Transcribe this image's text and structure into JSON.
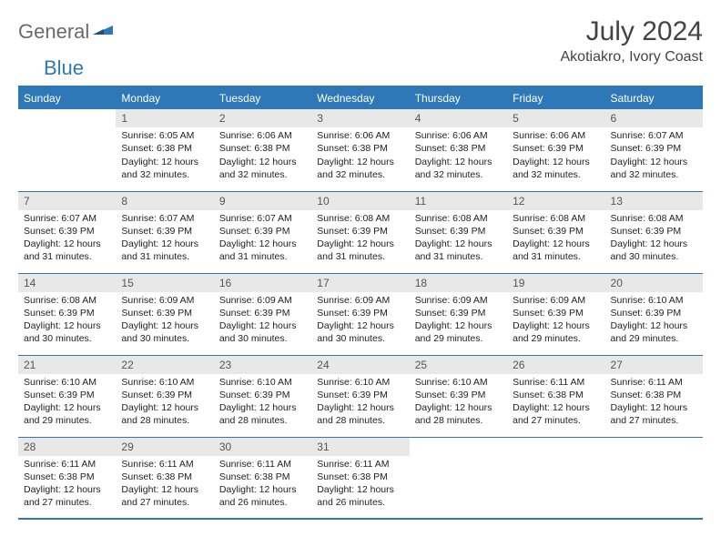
{
  "logo": {
    "general": "General",
    "blue": "Blue"
  },
  "title": "July 2024",
  "location": "Akotiakro, Ivory Coast",
  "weekdays": [
    "Sunday",
    "Monday",
    "Tuesday",
    "Wednesday",
    "Thursday",
    "Friday",
    "Saturday"
  ],
  "colors": {
    "brand": "#2f78b7",
    "header_bg": "#2f78b7",
    "header_text": "#ffffff",
    "daynum_bg": "#e8e8e8",
    "text": "#222222"
  },
  "weeks": [
    [
      {
        "day": "",
        "sunrise": "",
        "sunset": "",
        "daylight": ""
      },
      {
        "day": "1",
        "sunrise": "Sunrise: 6:05 AM",
        "sunset": "Sunset: 6:38 PM",
        "daylight": "Daylight: 12 hours and 32 minutes."
      },
      {
        "day": "2",
        "sunrise": "Sunrise: 6:06 AM",
        "sunset": "Sunset: 6:38 PM",
        "daylight": "Daylight: 12 hours and 32 minutes."
      },
      {
        "day": "3",
        "sunrise": "Sunrise: 6:06 AM",
        "sunset": "Sunset: 6:38 PM",
        "daylight": "Daylight: 12 hours and 32 minutes."
      },
      {
        "day": "4",
        "sunrise": "Sunrise: 6:06 AM",
        "sunset": "Sunset: 6:38 PM",
        "daylight": "Daylight: 12 hours and 32 minutes."
      },
      {
        "day": "5",
        "sunrise": "Sunrise: 6:06 AM",
        "sunset": "Sunset: 6:39 PM",
        "daylight": "Daylight: 12 hours and 32 minutes."
      },
      {
        "day": "6",
        "sunrise": "Sunrise: 6:07 AM",
        "sunset": "Sunset: 6:39 PM",
        "daylight": "Daylight: 12 hours and 32 minutes."
      }
    ],
    [
      {
        "day": "7",
        "sunrise": "Sunrise: 6:07 AM",
        "sunset": "Sunset: 6:39 PM",
        "daylight": "Daylight: 12 hours and 31 minutes."
      },
      {
        "day": "8",
        "sunrise": "Sunrise: 6:07 AM",
        "sunset": "Sunset: 6:39 PM",
        "daylight": "Daylight: 12 hours and 31 minutes."
      },
      {
        "day": "9",
        "sunrise": "Sunrise: 6:07 AM",
        "sunset": "Sunset: 6:39 PM",
        "daylight": "Daylight: 12 hours and 31 minutes."
      },
      {
        "day": "10",
        "sunrise": "Sunrise: 6:08 AM",
        "sunset": "Sunset: 6:39 PM",
        "daylight": "Daylight: 12 hours and 31 minutes."
      },
      {
        "day": "11",
        "sunrise": "Sunrise: 6:08 AM",
        "sunset": "Sunset: 6:39 PM",
        "daylight": "Daylight: 12 hours and 31 minutes."
      },
      {
        "day": "12",
        "sunrise": "Sunrise: 6:08 AM",
        "sunset": "Sunset: 6:39 PM",
        "daylight": "Daylight: 12 hours and 31 minutes."
      },
      {
        "day": "13",
        "sunrise": "Sunrise: 6:08 AM",
        "sunset": "Sunset: 6:39 PM",
        "daylight": "Daylight: 12 hours and 30 minutes."
      }
    ],
    [
      {
        "day": "14",
        "sunrise": "Sunrise: 6:08 AM",
        "sunset": "Sunset: 6:39 PM",
        "daylight": "Daylight: 12 hours and 30 minutes."
      },
      {
        "day": "15",
        "sunrise": "Sunrise: 6:09 AM",
        "sunset": "Sunset: 6:39 PM",
        "daylight": "Daylight: 12 hours and 30 minutes."
      },
      {
        "day": "16",
        "sunrise": "Sunrise: 6:09 AM",
        "sunset": "Sunset: 6:39 PM",
        "daylight": "Daylight: 12 hours and 30 minutes."
      },
      {
        "day": "17",
        "sunrise": "Sunrise: 6:09 AM",
        "sunset": "Sunset: 6:39 PM",
        "daylight": "Daylight: 12 hours and 30 minutes."
      },
      {
        "day": "18",
        "sunrise": "Sunrise: 6:09 AM",
        "sunset": "Sunset: 6:39 PM",
        "daylight": "Daylight: 12 hours and 29 minutes."
      },
      {
        "day": "19",
        "sunrise": "Sunrise: 6:09 AM",
        "sunset": "Sunset: 6:39 PM",
        "daylight": "Daylight: 12 hours and 29 minutes."
      },
      {
        "day": "20",
        "sunrise": "Sunrise: 6:10 AM",
        "sunset": "Sunset: 6:39 PM",
        "daylight": "Daylight: 12 hours and 29 minutes."
      }
    ],
    [
      {
        "day": "21",
        "sunrise": "Sunrise: 6:10 AM",
        "sunset": "Sunset: 6:39 PM",
        "daylight": "Daylight: 12 hours and 29 minutes."
      },
      {
        "day": "22",
        "sunrise": "Sunrise: 6:10 AM",
        "sunset": "Sunset: 6:39 PM",
        "daylight": "Daylight: 12 hours and 28 minutes."
      },
      {
        "day": "23",
        "sunrise": "Sunrise: 6:10 AM",
        "sunset": "Sunset: 6:39 PM",
        "daylight": "Daylight: 12 hours and 28 minutes."
      },
      {
        "day": "24",
        "sunrise": "Sunrise: 6:10 AM",
        "sunset": "Sunset: 6:39 PM",
        "daylight": "Daylight: 12 hours and 28 minutes."
      },
      {
        "day": "25",
        "sunrise": "Sunrise: 6:10 AM",
        "sunset": "Sunset: 6:39 PM",
        "daylight": "Daylight: 12 hours and 28 minutes."
      },
      {
        "day": "26",
        "sunrise": "Sunrise: 6:11 AM",
        "sunset": "Sunset: 6:38 PM",
        "daylight": "Daylight: 12 hours and 27 minutes."
      },
      {
        "day": "27",
        "sunrise": "Sunrise: 6:11 AM",
        "sunset": "Sunset: 6:38 PM",
        "daylight": "Daylight: 12 hours and 27 minutes."
      }
    ],
    [
      {
        "day": "28",
        "sunrise": "Sunrise: 6:11 AM",
        "sunset": "Sunset: 6:38 PM",
        "daylight": "Daylight: 12 hours and 27 minutes."
      },
      {
        "day": "29",
        "sunrise": "Sunrise: 6:11 AM",
        "sunset": "Sunset: 6:38 PM",
        "daylight": "Daylight: 12 hours and 27 minutes."
      },
      {
        "day": "30",
        "sunrise": "Sunrise: 6:11 AM",
        "sunset": "Sunset: 6:38 PM",
        "daylight": "Daylight: 12 hours and 26 minutes."
      },
      {
        "day": "31",
        "sunrise": "Sunrise: 6:11 AM",
        "sunset": "Sunset: 6:38 PM",
        "daylight": "Daylight: 12 hours and 26 minutes."
      },
      {
        "day": "",
        "sunrise": "",
        "sunset": "",
        "daylight": ""
      },
      {
        "day": "",
        "sunrise": "",
        "sunset": "",
        "daylight": ""
      },
      {
        "day": "",
        "sunrise": "",
        "sunset": "",
        "daylight": ""
      }
    ]
  ]
}
